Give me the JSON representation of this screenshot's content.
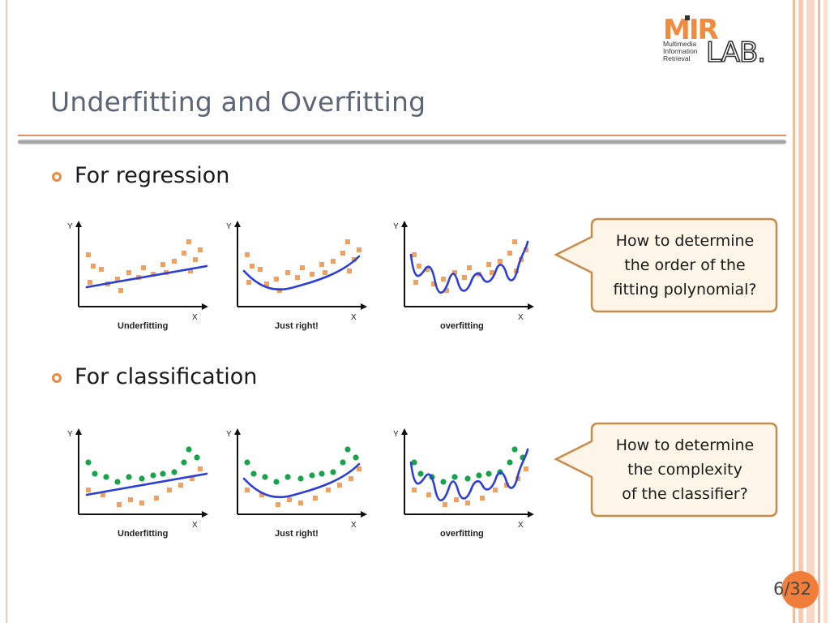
{
  "slide": {
    "title": "Underfitting and Overfitting",
    "page": "6/32"
  },
  "logo": {
    "mark": "MIR",
    "lab": "LAB.",
    "subtitle": "Multimedia\nInformation\nRetrieval",
    "colors": {
      "brand_orange": "#f08a3c",
      "dark": "#333333"
    }
  },
  "sections": [
    {
      "bullet": "For regression",
      "callout": "How to determine the order of the fitting polynomial?",
      "callout_lines": [
        "How to determine",
        "the order of the",
        "fitting polynomial?"
      ],
      "plots": [
        {
          "label": "Underfitting",
          "x_axis": "X",
          "y_axis": "Y"
        },
        {
          "label": "Just right!",
          "x_axis": "X",
          "y_axis": "Y"
        },
        {
          "label": "overfitting",
          "x_axis": "X",
          "y_axis": "Y"
        }
      ]
    },
    {
      "bullet": "For classification",
      "callout": "How to determine the complexity of the classifier?",
      "callout_lines": [
        "How to determine",
        "the complexity",
        "of the classifier?"
      ],
      "plots": [
        {
          "label": "Underfitting",
          "x_axis": "X",
          "y_axis": "Y"
        },
        {
          "label": "Just right!",
          "x_axis": "X",
          "y_axis": "Y"
        },
        {
          "label": "overfitting",
          "x_axis": "X",
          "y_axis": "Y"
        }
      ]
    }
  ],
  "colors": {
    "point_orange": "#f0a060",
    "point_green": "#16a34a",
    "fit_line": "#2b3fd8",
    "callout_fill": "#fdf6e8",
    "callout_border": "#c98a4a",
    "accent": "#f08a3c"
  }
}
